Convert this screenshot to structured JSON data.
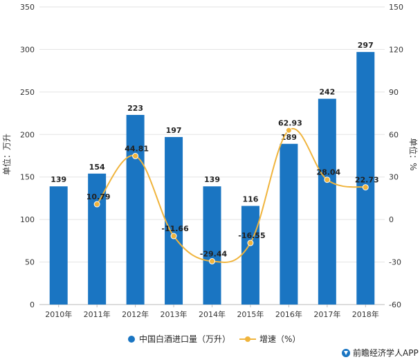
{
  "chart_data": {
    "type": "bar",
    "categories": [
      "2010年",
      "2011年",
      "2012年",
      "2013年",
      "2014年",
      "2015年",
      "2016年",
      "2017年",
      "2018年"
    ],
    "series": [
      {
        "name": "中国白酒进口量（万升）",
        "type": "bar",
        "axis": "left",
        "color": "#1a75c2",
        "values": [
          139,
          154,
          223,
          197,
          139,
          116,
          189,
          242,
          297
        ]
      },
      {
        "name": "增速（%）",
        "type": "line",
        "axis": "right",
        "color": "#f0b43c",
        "values": [
          null,
          10.79,
          44.81,
          -11.66,
          -29.44,
          -16.55,
          62.93,
          28.04,
          22.73
        ],
        "labels": [
          "",
          "10.79",
          "44.81",
          "-11.66",
          "-29.44",
          "-16.55",
          "62.93",
          "28.04",
          "22.73"
        ]
      }
    ],
    "ylabel": "单位：万升",
    "y2label": "单位：%",
    "ylim": [
      0,
      350
    ],
    "yticks": [
      "0",
      "50",
      "100",
      "150",
      "200",
      "250",
      "300",
      "350"
    ],
    "y2lim": [
      -60,
      150
    ],
    "y2ticks": [
      "-60",
      "-30",
      "0",
      "30",
      "60",
      "90",
      "120",
      "150"
    ],
    "grid": true,
    "legend_position": "bottom"
  },
  "legend": {
    "bar_label": "中国白酒进口量（万升）",
    "line_label": "增速（%）"
  },
  "credit": {
    "text": "前瞻经济学人APP",
    "logo_color": "#1a75c2"
  }
}
